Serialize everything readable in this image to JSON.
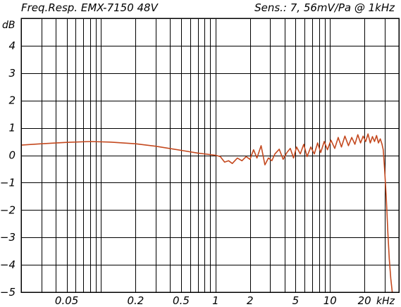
{
  "header": {
    "left": "Freq.Resp. EMX-7150 48V",
    "right": "Sens.: 7, 56mV/Pa @ 1kHz"
  },
  "chart_data": {
    "type": "line",
    "title": "Freq.Resp. EMX-7150 48V",
    "subtitle": "Sens.: 7, 56mV/Pa @ 1kHz",
    "xlabel": "kHz",
    "ylabel": "dB",
    "x_scale": "log",
    "x_unit": "kHz",
    "xlim": [
      0.02,
      40
    ],
    "ylim": [
      -5,
      5
    ],
    "grid": true,
    "x_ticks": [
      {
        "value": 0.05,
        "label": "0.05"
      },
      {
        "value": 0.2,
        "label": "0.2"
      },
      {
        "value": 0.5,
        "label": "0.5"
      },
      {
        "value": 1,
        "label": "1"
      },
      {
        "value": 2,
        "label": "2"
      },
      {
        "value": 5,
        "label": "5"
      },
      {
        "value": 10,
        "label": "10"
      },
      {
        "value": 20,
        "label": "20"
      }
    ],
    "y_ticks": [
      {
        "value": 4,
        "label": "4"
      },
      {
        "value": 3,
        "label": "3"
      },
      {
        "value": 2,
        "label": "2"
      },
      {
        "value": 1,
        "label": "1"
      },
      {
        "value": 0,
        "label": "0"
      },
      {
        "value": -1,
        "label": "−1"
      },
      {
        "value": -2,
        "label": "−2"
      },
      {
        "value": -3,
        "label": "−3"
      },
      {
        "value": -4,
        "label": "−4"
      },
      {
        "value": -5,
        "label": "−5"
      }
    ],
    "series": [
      {
        "color": "#c4491f",
        "x": [
          0.02,
          0.03,
          0.05,
          0.08,
          0.12,
          0.2,
          0.3,
          0.5,
          0.7,
          1.0,
          1.1,
          1.2,
          1.3,
          1.4,
          1.55,
          1.7,
          1.85,
          2.0,
          2.15,
          2.3,
          2.5,
          2.7,
          2.9,
          3.1,
          3.3,
          3.6,
          3.9,
          4.2,
          4.5,
          4.8,
          5.1,
          5.5,
          5.9,
          6.3,
          6.8,
          7.3,
          7.8,
          8.3,
          8.9,
          9.5,
          10.2,
          11.0,
          11.8,
          12.6,
          13.5,
          14.5,
          15.5,
          16.5,
          17.5,
          18.5,
          19.5,
          20.5,
          21.5,
          22.5,
          23.5,
          24.5,
          25.5,
          26.5,
          27.5,
          28.5,
          29.2,
          30,
          31,
          32,
          33,
          34,
          35
        ],
        "y": [
          0.37,
          0.42,
          0.47,
          0.5,
          0.48,
          0.42,
          0.33,
          0.18,
          0.08,
          0.0,
          -0.05,
          -0.25,
          -0.2,
          -0.3,
          -0.1,
          -0.2,
          -0.05,
          -0.15,
          0.2,
          -0.1,
          0.35,
          -0.35,
          -0.1,
          -0.2,
          0.05,
          0.22,
          -0.15,
          0.1,
          0.25,
          -0.1,
          0.3,
          0.05,
          0.4,
          -0.05,
          0.3,
          0.05,
          0.45,
          0.1,
          0.5,
          0.2,
          0.55,
          0.25,
          0.65,
          0.3,
          0.7,
          0.35,
          0.65,
          0.4,
          0.75,
          0.45,
          0.7,
          0.5,
          0.78,
          0.45,
          0.68,
          0.5,
          0.72,
          0.45,
          0.6,
          0.4,
          0.2,
          -0.5,
          -1.5,
          -2.8,
          -3.8,
          -4.5,
          -5.0
        ]
      }
    ]
  }
}
